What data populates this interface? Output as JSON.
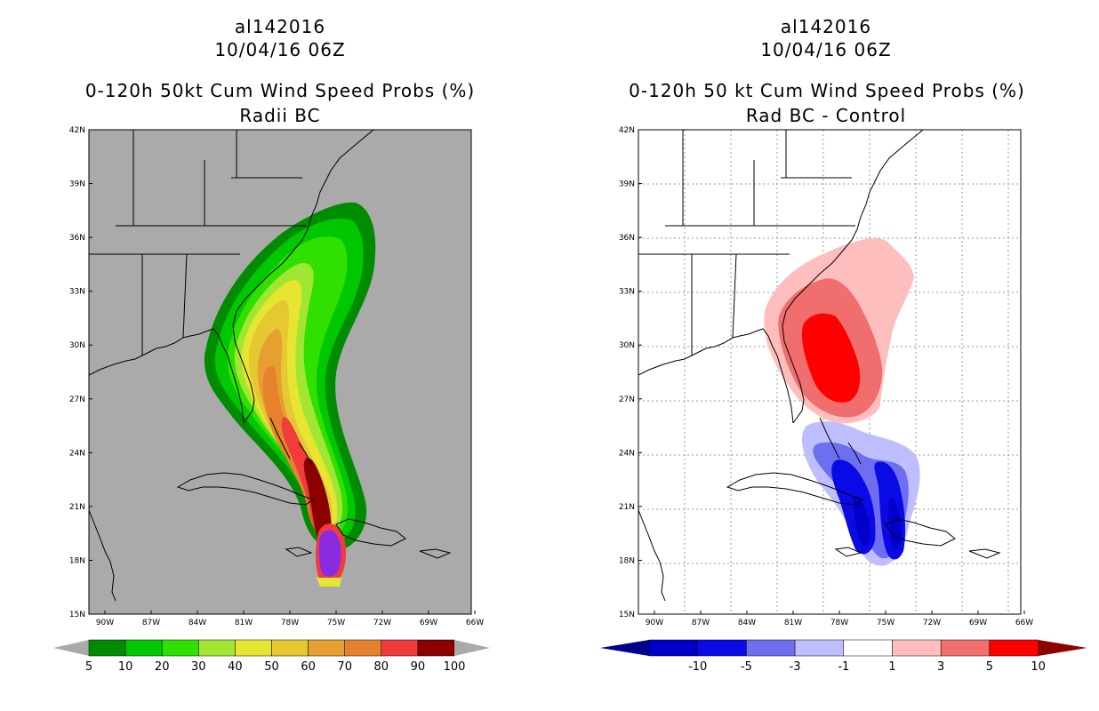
{
  "left_panel": {
    "storm_id": "al142016",
    "datetime": "10/04/16 06Z",
    "title": "0-120h 50kt Cum Wind Speed Probs (%)",
    "subtitle": "Radii BC",
    "colorbar": {
      "labels": [
        "5",
        "10",
        "20",
        "30",
        "40",
        "50",
        "60",
        "70",
        "80",
        "90",
        "100"
      ],
      "colors": [
        "#008C00",
        "#00C800",
        "#30E000",
        "#A0E632",
        "#E6E632",
        "#E6C832",
        "#E6A032",
        "#E6822D",
        "#F03C3C",
        "#8C0000",
        "#8A2BE2"
      ],
      "extend_color": "#AAAAAA"
    }
  },
  "right_panel": {
    "storm_id": "al142016",
    "datetime": "10/04/16 06Z",
    "title": "0-120h 50 kt Cum Wind Speed Probs (%)",
    "subtitle": "Rad BC - Control",
    "colorbar": {
      "labels": [
        "-10",
        "-5",
        "-3",
        "-1",
        "1",
        "3",
        "5",
        "10"
      ],
      "colors": [
        "#0000C8",
        "#0A0AE6",
        "#6E6EF0",
        "#BEBEFF",
        "#FFFFFF",
        "#FFBEBE",
        "#F06E6E",
        "#FF0000"
      ],
      "low_extend_color": "#00008C",
      "high_extend_color": "#8C0000"
    }
  },
  "axes": {
    "lat_labels": [
      "42N",
      "39N",
      "36N",
      "33N",
      "30N",
      "27N",
      "24N",
      "21N",
      "18N",
      "15N"
    ],
    "lon_labels": [
      "90W",
      "87W",
      "84W",
      "81W",
      "78W",
      "75W",
      "72W",
      "69W",
      "66W"
    ]
  }
}
